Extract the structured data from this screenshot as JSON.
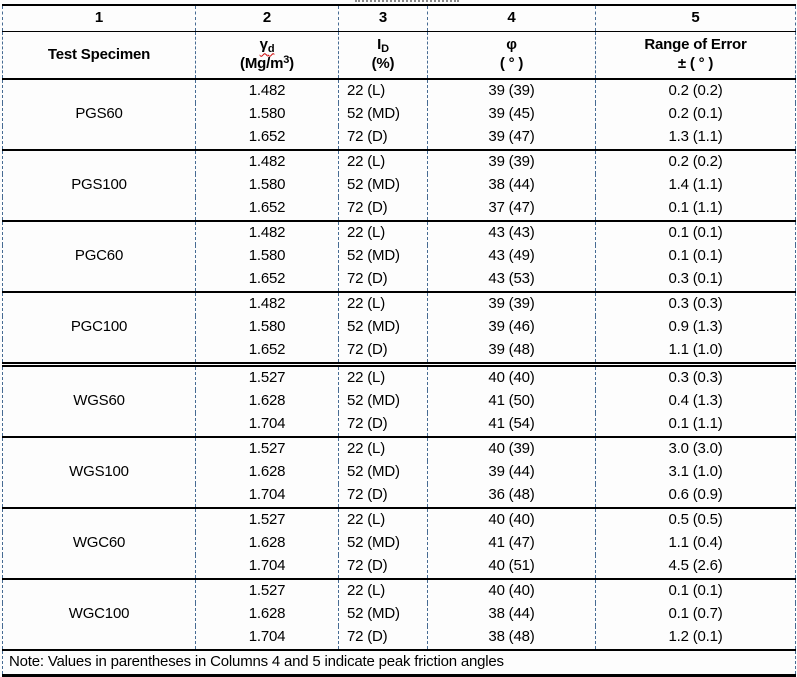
{
  "colors": {
    "grid_dashed_guide": "#476b93",
    "rule_lines": "#000000",
    "spellcheck_squiggle": "#cc0000",
    "background": "#fdfdfd"
  },
  "table": {
    "column_numbers": [
      "1",
      "2",
      "3",
      "4",
      "5"
    ],
    "header": {
      "col1_title": "Test Specimen",
      "col2_symbol": "γ",
      "col2_symbol_sub": "d",
      "col2_unit_pre": "(Mg/m",
      "col2_unit_sup": "3",
      "col2_unit_post": ")",
      "col3_symbol": "I",
      "col3_symbol_sub": "D",
      "col3_unit": "(%)",
      "col4_symbol": "φ",
      "col4_unit": "( ° )",
      "col5_title": "Range of Error",
      "col5_unit": "± ( ° )"
    },
    "groups": [
      {
        "specimen": "PGS60",
        "rows": [
          [
            "1.482",
            "22 (L)",
            "39 (39)",
            "0.2 (0.2)"
          ],
          [
            "1.580",
            "52 (MD)",
            "39 (45)",
            "0.2 (0.1)"
          ],
          [
            "1.652",
            "72 (D)",
            "39 (47)",
            "1.3 (1.1)"
          ]
        ]
      },
      {
        "specimen": "PGS100",
        "rows": [
          [
            "1.482",
            "22 (L)",
            "39 (39)",
            "0.2 (0.2)"
          ],
          [
            "1.580",
            "52 (MD)",
            "38 (44)",
            "1.4 (1.1)"
          ],
          [
            "1.652",
            "72 (D)",
            "37 (47)",
            "0.1 (1.1)"
          ]
        ]
      },
      {
        "specimen": "PGC60",
        "rows": [
          [
            "1.482",
            "22 (L)",
            "43 (43)",
            "0.1 (0.1)"
          ],
          [
            "1.580",
            "52 (MD)",
            "43 (49)",
            "0.1 (0.1)"
          ],
          [
            "1.652",
            "72 (D)",
            "43 (53)",
            "0.3 (0.1)"
          ]
        ]
      },
      {
        "specimen": "PGC100",
        "rows": [
          [
            "1.482",
            "22 (L)",
            "39 (39)",
            "0.3 (0.3)"
          ],
          [
            "1.580",
            "52 (MD)",
            "39 (46)",
            "0.9 (1.3)"
          ],
          [
            "1.652",
            "72 (D)",
            "39 (48)",
            "1.1 (1.0)"
          ]
        ]
      },
      {
        "specimen": "WGS60",
        "rows": [
          [
            "1.527",
            "22 (L)",
            "40 (40)",
            "0.3 (0.3)"
          ],
          [
            "1.628",
            "52 (MD)",
            "41 (50)",
            "0.4 (1.3)"
          ],
          [
            "1.704",
            "72 (D)",
            "41 (54)",
            "0.1 (1.1)"
          ]
        ]
      },
      {
        "specimen": "WGS100",
        "rows": [
          [
            "1.527",
            "22 (L)",
            "40 (39)",
            "3.0 (3.0)"
          ],
          [
            "1.628",
            "52 (MD)",
            "39 (44)",
            "3.1 (1.0)"
          ],
          [
            "1.704",
            "72 (D)",
            "36 (48)",
            "0.6 (0.9)"
          ]
        ]
      },
      {
        "specimen": "WGC60",
        "rows": [
          [
            "1.527",
            "22 (L)",
            "40 (40)",
            "0.5 (0.5)"
          ],
          [
            "1.628",
            "52 (MD)",
            "41 (47)",
            "1.1 (0.4)"
          ],
          [
            "1.704",
            "72 (D)",
            "40 (51)",
            "4.5 (2.6)"
          ]
        ]
      },
      {
        "specimen": "WGC100",
        "rows": [
          [
            "1.527",
            "22 (L)",
            "40 (40)",
            "0.1 (0.1)"
          ],
          [
            "1.628",
            "52 (MD)",
            "38 (44)",
            "0.1 (0.7)"
          ],
          [
            "1.704",
            "72 (D)",
            "38 (48)",
            "1.2 (0.1)"
          ]
        ]
      }
    ],
    "note": "Note: Values in parentheses in Columns 4 and 5 indicate peak friction angles"
  }
}
